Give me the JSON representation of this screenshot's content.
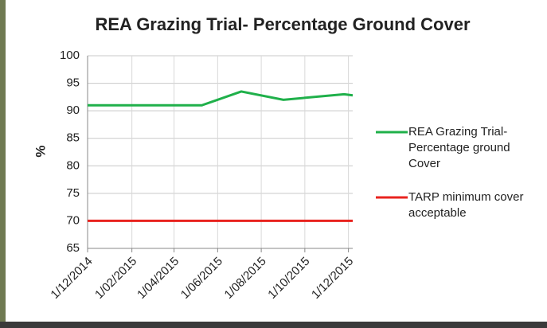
{
  "chart_data": {
    "type": "line",
    "title": "REA Grazing Trial- Percentage Ground Cover",
    "y_label": "%",
    "xlim": [
      "1/12/2014",
      "7/12/2015"
    ],
    "xticks": [
      "1/12/2014",
      "1/02/2015",
      "1/04/2015",
      "1/06/2015",
      "1/08/2015",
      "1/10/2015",
      "1/12/2015"
    ],
    "ylim": [
      65,
      100
    ],
    "yticks": [
      65,
      70,
      75,
      80,
      85,
      90,
      95,
      100
    ],
    "grid": true,
    "legend": "right",
    "series": [
      {
        "name": "REA Grazing Trial- Percentage ground Cover",
        "color": "#1fb04a",
        "x": [
          "1/12/2014",
          "10/05/2015",
          "4/07/2015",
          "1/09/2015",
          "25/11/2015",
          "7/12/2015"
        ],
        "values": [
          91,
          91,
          93.5,
          92,
          93,
          92.8
        ]
      },
      {
        "name": "TARP minimum cover acceptable",
        "color": "#e8231f",
        "x": [
          "1/12/2014",
          "7/12/2015"
        ],
        "values": [
          70,
          70
        ]
      }
    ]
  }
}
